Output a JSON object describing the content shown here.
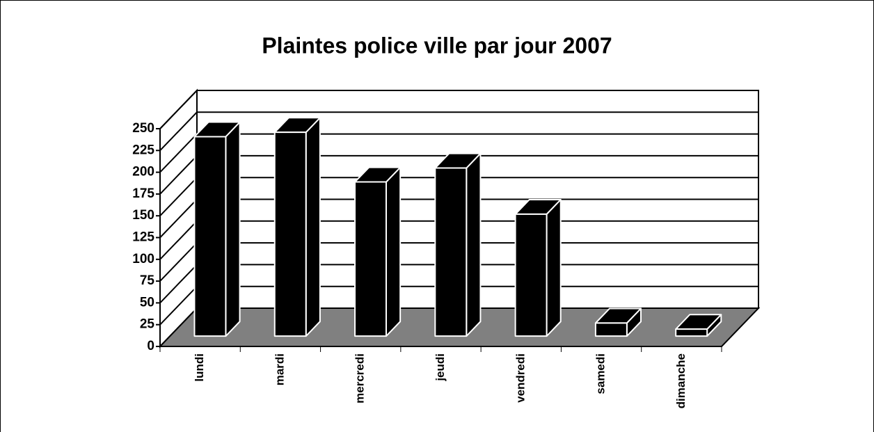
{
  "chart_data": {
    "type": "bar3d",
    "title": "Plaintes police ville par jour 2007",
    "categories": [
      "lundi",
      "mardi",
      "mercredi",
      "jeudi",
      "vendredi",
      "samedi",
      "dimanche"
    ],
    "values": [
      229,
      234,
      177,
      193,
      140,
      15,
      8
    ],
    "color": "#000000",
    "floor_color": "#808080",
    "ylim": [
      0,
      250
    ],
    "yticks": [
      0,
      25,
      50,
      75,
      100,
      125,
      150,
      175,
      200,
      225,
      250
    ],
    "grid": true
  }
}
